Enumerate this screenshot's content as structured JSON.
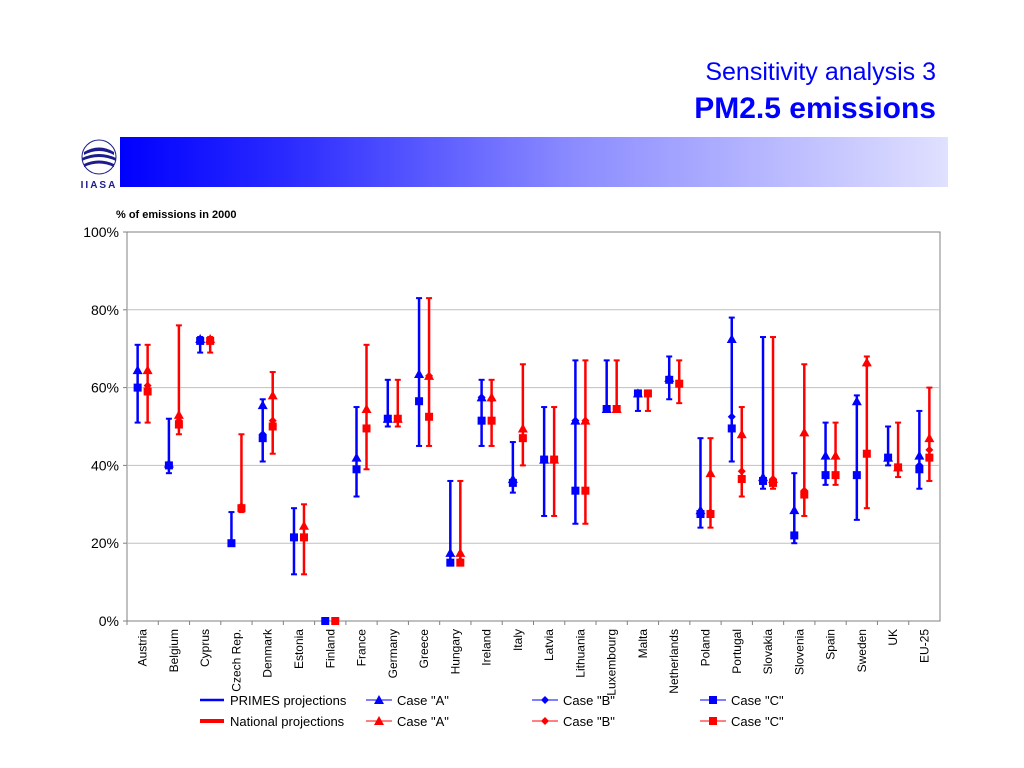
{
  "slide": {
    "title_line1": "Sensitivity analysis 3",
    "title_line2": "PM2.5 emissions",
    "logo_text": "IIASA"
  },
  "colors": {
    "primes": "#0000ff",
    "national": "#ff0000",
    "accent": "#0000ff"
  },
  "chart_data": {
    "type": "scatter",
    "title": "",
    "ylabel": "% of emissions in 2000",
    "ylim": [
      0,
      100
    ],
    "yticks": [
      "0%",
      "20%",
      "40%",
      "60%",
      "80%",
      "100%"
    ],
    "grid": true,
    "legend_position": "bottom",
    "categories": [
      "Austria",
      "Belgium",
      "Cyprus",
      "Czech Rep.",
      "Denmark",
      "Estonia",
      "Finland",
      "France",
      "Germany",
      "Greece",
      "Hungary",
      "Ireland",
      "Italy",
      "Latvia",
      "Lithuania",
      "Luxembourg",
      "Malta",
      "Netherlands",
      "Poland",
      "Portugal",
      "Slovakia",
      "Slovenia",
      "Spain",
      "Sweden",
      "UK",
      "EU-25"
    ],
    "series": [
      {
        "name": "PRIMES projections",
        "color": "#0000ff",
        "range_low": [
          51,
          38,
          69,
          20,
          41,
          12,
          0,
          32,
          50,
          45,
          15,
          45,
          33,
          27,
          25,
          54,
          54,
          57,
          24,
          41,
          34,
          20,
          35,
          26,
          40,
          34
        ],
        "range_high": [
          71,
          52,
          73,
          28,
          57,
          29,
          0,
          55,
          62,
          83,
          36,
          62,
          46,
          55,
          67,
          67,
          59,
          68,
          47,
          78,
          73,
          38,
          51,
          58,
          50,
          54
        ],
        "case_a": [
          64.5,
          40.5,
          72.5,
          null,
          55.5,
          null,
          null,
          42,
          52,
          63.5,
          17.5,
          57.5,
          36.5,
          41.5,
          51.5,
          54.5,
          58.5,
          62.5,
          28.5,
          72.5,
          37,
          28.5,
          42.5,
          56.5,
          42,
          42.5
        ],
        "case_b": [
          60,
          40,
          72,
          null,
          48,
          21.5,
          null,
          39,
          52,
          56.5,
          15,
          57.5,
          35.5,
          41.5,
          51.5,
          54.5,
          58.5,
          62,
          28,
          52.5,
          36,
          22,
          37.5,
          37.5,
          42,
          40
        ],
        "case_c": [
          60,
          40,
          72,
          20,
          47,
          21.5,
          0,
          39,
          52,
          56.5,
          15,
          51.5,
          35.5,
          41.5,
          33.5,
          54.5,
          58.5,
          62,
          27.5,
          49.5,
          36,
          22,
          37.5,
          37.5,
          42,
          39
        ]
      },
      {
        "name": "National projections",
        "color": "#ff0000",
        "range_low": [
          51,
          48,
          69,
          28,
          43,
          12,
          0,
          39,
          50,
          45,
          15,
          45,
          40,
          27,
          25,
          54,
          54,
          56,
          24,
          32,
          34,
          27,
          35,
          29,
          37,
          36
        ],
        "range_high": [
          71,
          76,
          73,
          48,
          64,
          30,
          0,
          71,
          62,
          83,
          36,
          62,
          66,
          55,
          67,
          67,
          59,
          67,
          47,
          55,
          73,
          66,
          51,
          68,
          51,
          60
        ],
        "case_a": [
          64.5,
          53,
          72.5,
          null,
          58,
          24.5,
          null,
          54.5,
          52,
          63,
          17.5,
          57.5,
          49.5,
          41.5,
          51.5,
          54.5,
          null,
          null,
          38,
          48,
          36.5,
          48.5,
          42.5,
          66.5,
          39.5,
          47
        ],
        "case_b": [
          60.5,
          51.5,
          72,
          29.5,
          51.5,
          21.5,
          null,
          49.5,
          52,
          63,
          15.5,
          57,
          47,
          41.5,
          51.5,
          54.5,
          58.5,
          61,
          28,
          38.5,
          36.5,
          33.5,
          37.5,
          66,
          39.5,
          44
        ],
        "case_c": [
          59,
          50.5,
          72,
          29,
          50,
          21.5,
          0,
          49.5,
          52,
          52.5,
          15,
          51.5,
          47,
          41.5,
          33.5,
          54.5,
          58.5,
          61,
          27.5,
          36.5,
          35.5,
          32.5,
          37.5,
          43,
          39.5,
          42
        ]
      }
    ],
    "legend": {
      "primes_label": "PRIMES projections",
      "national_label": "National projections",
      "case_a_label": "Case \"A\"",
      "case_b_label": "Case \"B\"",
      "case_c_label": "Case \"C\""
    }
  }
}
